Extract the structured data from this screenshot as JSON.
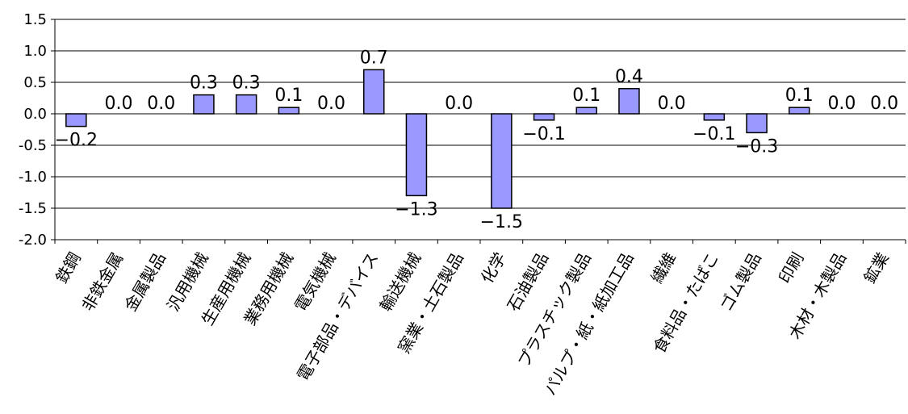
{
  "chart_data": {
    "type": "bar",
    "categories": [
      "鉄鋼",
      "非鉄金属",
      "金属製品",
      "汎用機械",
      "生産用機械",
      "業務用機械",
      "電気機械",
      "電子部品・デバイス",
      "輸送機械",
      "窯業・土石製品",
      "化学",
      "石油製品",
      "プラスチック製品",
      "パルプ・紙・紙加工品",
      "繊維",
      "食料品・たばこ",
      "ゴム製品",
      "印刷",
      "木材・木製品",
      "鉱業"
    ],
    "values": [
      -0.2,
      0.0,
      0.0,
      0.3,
      0.3,
      0.1,
      0.0,
      0.7,
      -1.3,
      0.0,
      -1.5,
      -0.1,
      0.1,
      0.4,
      0.0,
      -0.1,
      -0.3,
      0.1,
      0.0,
      0.0
    ],
    "data_labels": [
      "−0.2",
      "0.0",
      "0.0",
      "0.3",
      "0.3",
      "0.1",
      "0.0",
      "0.7",
      "−1.3",
      "0.0",
      "−1.5",
      "−0.1",
      "0.1",
      "0.4",
      "0.0",
      "−0.1",
      "−0.3",
      "0.1",
      "0.0",
      "0.0"
    ],
    "yticks": [
      1.5,
      1.0,
      0.5,
      0.0,
      -0.5,
      -1.0,
      -1.5,
      -2.0
    ],
    "ytick_labels": [
      "1.5",
      "1.0",
      "0.5",
      "0.0",
      "-0.5",
      "-1.0",
      "-1.5",
      "-2.0"
    ],
    "ylim": [
      -2.0,
      1.5
    ],
    "title": "",
    "xlabel": "",
    "ylabel": "",
    "grid": true,
    "bar_color": "#9999ff",
    "bar_edge": "#000000"
  }
}
